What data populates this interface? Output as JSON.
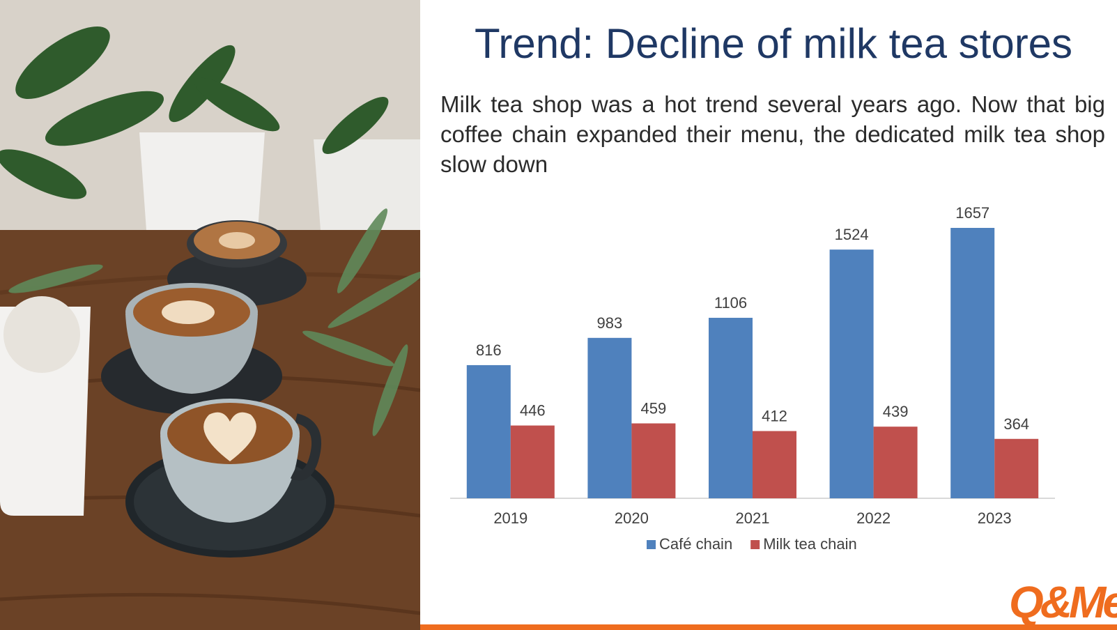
{
  "slide": {
    "title": "Trend: Decline of milk tea stores",
    "subtitle": "Milk tea shop was a hot trend several years ago. Now that big coffee chain expanded their menu, the dedicated milk tea shop slow down",
    "logo_text": "Q&Me"
  },
  "photo": {
    "description_icon": "coffee-cups-photo"
  },
  "colors": {
    "title": "#1f3864",
    "series_cafe": "#4f81bd",
    "series_milktea": "#c0504d",
    "accent": "#ef6c1e"
  },
  "chart_data": {
    "type": "bar",
    "categories": [
      "2019",
      "2020",
      "2021",
      "2022",
      "2023"
    ],
    "series": [
      {
        "name": "Café chain",
        "values": [
          816,
          983,
          1106,
          1524,
          1657
        ],
        "color": "#4f81bd"
      },
      {
        "name": "Milk tea chain",
        "values": [
          446,
          459,
          412,
          439,
          364
        ],
        "color": "#c0504d"
      }
    ],
    "title": "",
    "xlabel": "",
    "ylabel": "",
    "ylim": [
      0,
      1700
    ],
    "grid": false,
    "legend": "bottom",
    "data_labels": true
  }
}
